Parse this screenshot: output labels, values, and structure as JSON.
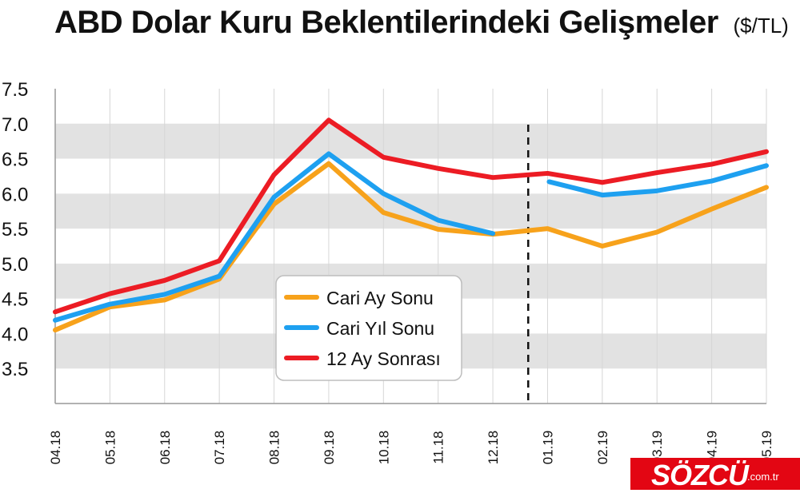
{
  "chart_data": {
    "type": "line",
    "title": "ABD Dolar Kuru Beklentilerindeki Gelişmeler",
    "unit": "($/TL)",
    "categories": [
      "04.18",
      "05.18",
      "06.18",
      "07.18",
      "08.18",
      "09.18",
      "10.18",
      "11.18",
      "12.18",
      "01.19",
      "02.19",
      "03.19",
      "04.19",
      "05.19"
    ],
    "y_ticks": [
      "3.5",
      "4.0",
      "4.5",
      "5.0",
      "5.5",
      "6.0",
      "6.5",
      "7.0",
      "7.5"
    ],
    "ylim": [
      3.0,
      7.5
    ],
    "grid": "alternating horizontal bands",
    "divider_after_category": "12.18",
    "legend_position": "center-left",
    "series": [
      {
        "name": "Cari Ay Sonu",
        "color": "#f7a21b",
        "values": [
          4.05,
          4.38,
          4.48,
          4.78,
          5.85,
          6.43,
          5.73,
          5.49,
          5.42,
          5.5,
          5.25,
          5.45,
          5.78,
          6.09
        ]
      },
      {
        "name": "Cari Yıl Sonu",
        "color": "#1ea0f0",
        "values": [
          4.19,
          4.42,
          4.56,
          4.82,
          5.95,
          6.57,
          6.0,
          5.62,
          5.43,
          null,
          5.98,
          6.04,
          6.18,
          6.4
        ]
      },
      {
        "name": "12 Ay Sonrası",
        "color": "#ec1c24",
        "values": [
          4.31,
          4.57,
          4.76,
          5.04,
          6.27,
          7.05,
          6.52,
          6.36,
          6.23,
          6.29,
          6.16,
          6.3,
          6.42,
          6.6
        ]
      }
    ],
    "cari_yil_sonu_new_segment_start": 6.17
  },
  "logo": {
    "brand": "SÖZCÜ",
    "tld": ".com.tr"
  }
}
